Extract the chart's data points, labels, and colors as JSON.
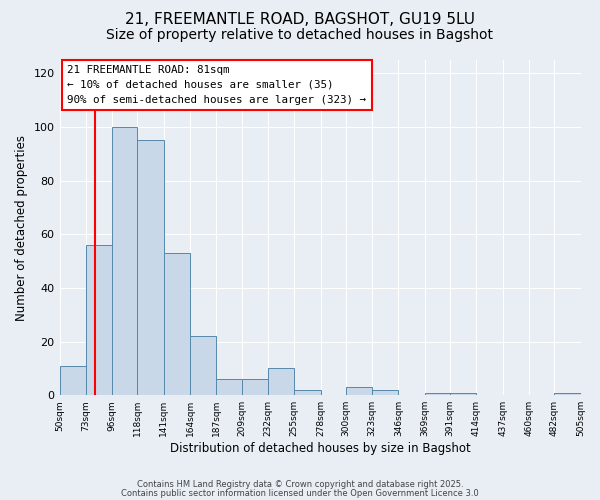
{
  "title1": "21, FREEMANTLE ROAD, BAGSHOT, GU19 5LU",
  "title2": "Size of property relative to detached houses in Bagshot",
  "xlabel": "Distribution of detached houses by size in Bagshot",
  "ylabel": "Number of detached properties",
  "bin_labels": [
    "50sqm",
    "73sqm",
    "96sqm",
    "118sqm",
    "141sqm",
    "164sqm",
    "187sqm",
    "209sqm",
    "232sqm",
    "255sqm",
    "278sqm",
    "300sqm",
    "323sqm",
    "346sqm",
    "369sqm",
    "391sqm",
    "414sqm",
    "437sqm",
    "460sqm",
    "482sqm",
    "505sqm"
  ],
  "bin_edges": [
    50,
    73,
    96,
    118,
    141,
    164,
    187,
    209,
    232,
    255,
    278,
    300,
    323,
    346,
    369,
    391,
    414,
    437,
    460,
    482,
    505
  ],
  "bar_heights": [
    11,
    56,
    100,
    95,
    53,
    22,
    6,
    6,
    10,
    2,
    0,
    3,
    2,
    0,
    1,
    1,
    0,
    0,
    0,
    1
  ],
  "bar_color": "#c8d8e8",
  "bar_edge_color": "#5588aa",
  "red_line_x": 81,
  "ylim": [
    0,
    125
  ],
  "yticks": [
    0,
    20,
    40,
    60,
    80,
    100,
    120
  ],
  "annotation_text": "21 FREEMANTLE ROAD: 81sqm\n← 10% of detached houses are smaller (35)\n90% of semi-detached houses are larger (323) →",
  "footnote1": "Contains HM Land Registry data © Crown copyright and database right 2025.",
  "footnote2": "Contains public sector information licensed under the Open Government Licence 3.0",
  "bg_color": "#e8eef4",
  "grid_color": "#ffffff",
  "title_fontsize": 11,
  "subtitle_fontsize": 10
}
